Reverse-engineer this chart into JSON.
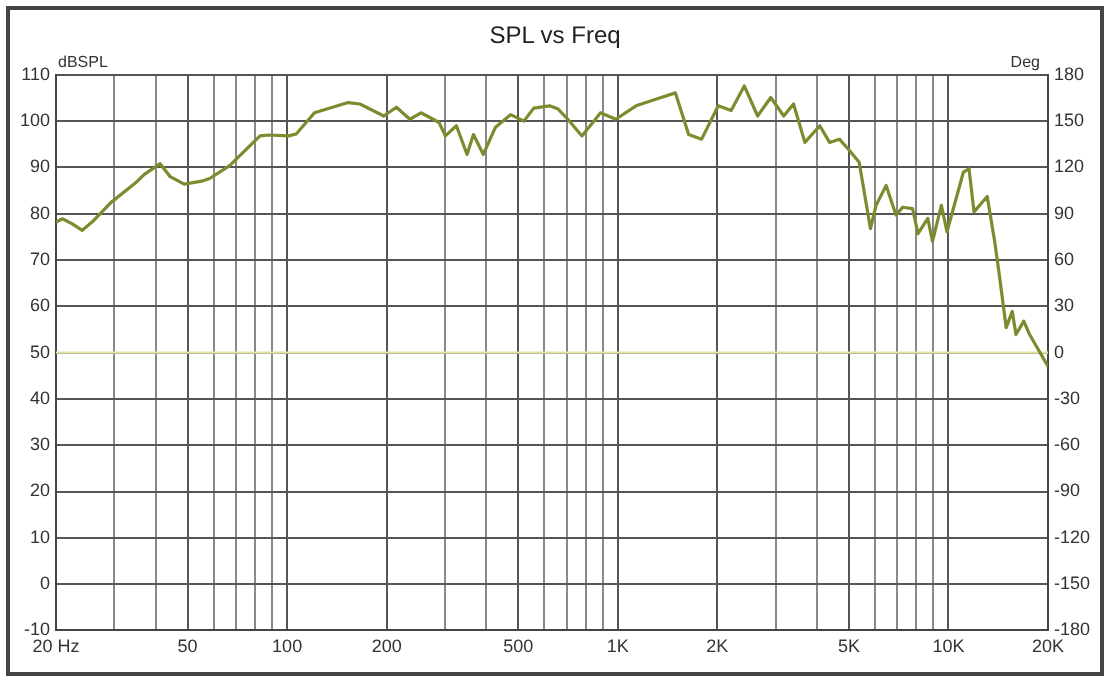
{
  "chart_data": {
    "type": "line",
    "title": "SPL vs Freq",
    "ylabel": "dBSPL",
    "y2label": "Deg",
    "x": [
      20,
      20.9,
      22.4,
      24,
      25.7,
      29.4,
      34.6,
      37,
      41.3,
      44.3,
      48.8,
      55.7,
      58.3,
      67,
      82.8,
      88,
      101,
      106.5,
      121,
      153,
      166,
      196,
      214,
      235,
      254,
      288,
      301,
      325,
      350,
      366,
      392,
      426,
      474,
      520,
      557,
      622,
      660,
      706,
      779,
      887,
      986,
      1136,
      1303,
      1493,
      1638,
      1793,
      2013,
      2202,
      2413,
      2648,
      2902,
      3177,
      3400,
      3680,
      4083,
      4370,
      4680,
      5012,
      5370,
      5810,
      6040,
      6480,
      6940,
      7270,
      7790,
      8090,
      8660,
      8950,
      9520,
      9900,
      11100,
      11540,
      11950,
      13100,
      13800,
      14250,
      14950,
      15600,
      16000,
      16900,
      17600,
      20000
    ],
    "series": [
      {
        "color": "#7f8a2e",
        "values": [
          78.2,
          78.9,
          77.8,
          76.4,
          78.2,
          82.5,
          86.5,
          88.5,
          90.8,
          88,
          86.4,
          87.1,
          87.6,
          90.4,
          96.8,
          97,
          96.8,
          97.2,
          101.8,
          104,
          103.7,
          101.1,
          103,
          100.4,
          101.8,
          99.7,
          96.8,
          99,
          92.8,
          97.1,
          92.8,
          98.6,
          101.4,
          100,
          102.8,
          103.3,
          102.6,
          100.4,
          96.8,
          101.8,
          100.4,
          103.3,
          104.7,
          106.1,
          97.1,
          96.1,
          103.3,
          102.3,
          107.6,
          101.1,
          105.1,
          101.1,
          103.7,
          95.4,
          99,
          95.4,
          96.1,
          93.7,
          91.1,
          76.8,
          81.8,
          86.1,
          79.7,
          81.4,
          81.1,
          75.7,
          79,
          74,
          81.8,
          76.1,
          89,
          89.7,
          80.4,
          83.7,
          74,
          66.8,
          55.4,
          58.9,
          53.9,
          56.8,
          53.9,
          47
        ]
      }
    ],
    "log": "x",
    "xlim": [
      20,
      20000
    ],
    "xticks": [
      {
        "value": 20,
        "label": "20 Hz"
      },
      {
        "value": 30,
        "label": null
      },
      {
        "value": 40,
        "label": null
      },
      50,
      {
        "value": 60,
        "label": null
      },
      {
        "value": 70,
        "label": null
      },
      {
        "value": 80,
        "label": null
      },
      {
        "value": 90,
        "label": null
      },
      100,
      200,
      {
        "value": 300,
        "label": null
      },
      {
        "value": 400,
        "label": null
      },
      500,
      {
        "value": 600,
        "label": null
      },
      {
        "value": 700,
        "label": null
      },
      {
        "value": 800,
        "label": null
      },
      {
        "value": 900,
        "label": null
      },
      {
        "value": 1000,
        "label": "1K"
      },
      {
        "value": 2000,
        "label": "2K"
      },
      {
        "value": 3000,
        "label": null
      },
      {
        "value": 4000,
        "label": null
      },
      {
        "value": 5000,
        "label": "5K"
      },
      {
        "value": 6000,
        "label": null
      },
      {
        "value": 7000,
        "label": null
      },
      {
        "value": 8000,
        "label": null
      },
      {
        "value": 9000,
        "label": null
      },
      {
        "value": 10000,
        "label": "10K"
      },
      {
        "value": 20000,
        "label": "20K"
      }
    ],
    "ylim": [
      -10,
      110
    ],
    "yticks": [
      -10,
      0,
      10,
      20,
      30,
      40,
      50,
      60,
      70,
      80,
      90,
      100,
      110
    ],
    "y2lim": [
      -180,
      180
    ],
    "y2ticks": [
      -180,
      -150,
      -120,
      -90,
      -60,
      -30,
      0,
      30,
      60,
      90,
      120,
      150,
      180
    ],
    "ref_lines": [
      {
        "axis": "y2",
        "value": 0,
        "color": "#e2e2a8"
      }
    ],
    "grid": true,
    "legend": false,
    "marker": "none",
    "line_style": "solid"
  }
}
